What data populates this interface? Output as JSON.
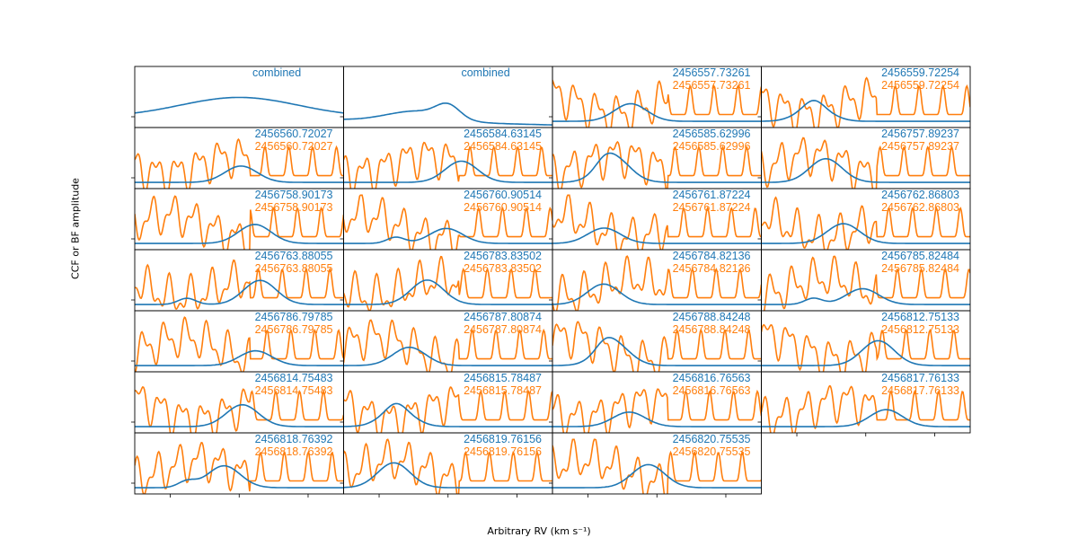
{
  "chart_data": {
    "type": "line",
    "xlabel": "Arbitrary RV (km s⁻¹)",
    "ylabel": "CCF or BF amplitude",
    "colors": {
      "blue": "#1f77b4",
      "orange": "#ff7f0e"
    },
    "grid": false,
    "layout": {
      "rows": 7,
      "cols": 4
    },
    "panels": [
      {
        "labels": [
          "combined"
        ],
        "series": [
          "blue"
        ]
      },
      {
        "labels": [
          "combined"
        ],
        "series": [
          "blue"
        ]
      },
      {
        "labels": [
          "2456557.73261",
          "2456557.73261"
        ],
        "series": [
          "blue",
          "orange"
        ]
      },
      {
        "labels": [
          "2456559.72254",
          "2456559.72254"
        ],
        "series": [
          "blue",
          "orange"
        ]
      },
      {
        "labels": [
          "2456560.72027",
          "2456560.72027"
        ],
        "series": [
          "blue",
          "orange"
        ]
      },
      {
        "labels": [
          "2456584.63145",
          "2456584.63145"
        ],
        "series": [
          "blue",
          "orange"
        ]
      },
      {
        "labels": [
          "2456585.62996",
          "2456585.62996"
        ],
        "series": [
          "blue",
          "orange"
        ]
      },
      {
        "labels": [
          "2456757.89237",
          "2456757.89237"
        ],
        "series": [
          "blue",
          "orange"
        ]
      },
      {
        "labels": [
          "2456758.90173",
          "2456758.90173"
        ],
        "series": [
          "blue",
          "orange"
        ]
      },
      {
        "labels": [
          "2456760.90514",
          "2456760.90514"
        ],
        "series": [
          "blue",
          "orange"
        ]
      },
      {
        "labels": [
          "2456761.87224",
          "2456761.87224"
        ],
        "series": [
          "blue",
          "orange"
        ]
      },
      {
        "labels": [
          "2456762.86803",
          "2456762.86803"
        ],
        "series": [
          "blue",
          "orange"
        ]
      },
      {
        "labels": [
          "2456763.88055",
          "2456763.88055"
        ],
        "series": [
          "blue",
          "orange"
        ]
      },
      {
        "labels": [
          "2456783.83502",
          "2456783.83502"
        ],
        "series": [
          "blue",
          "orange"
        ]
      },
      {
        "labels": [
          "2456784.82136",
          "2456784.82136"
        ],
        "series": [
          "blue",
          "orange"
        ]
      },
      {
        "labels": [
          "2456785.82484",
          "2456785.82484"
        ],
        "series": [
          "blue",
          "orange"
        ]
      },
      {
        "labels": [
          "2456786.79785",
          "2456786.79785"
        ],
        "series": [
          "blue",
          "orange"
        ]
      },
      {
        "labels": [
          "2456787.80874",
          "2456787.80874"
        ],
        "series": [
          "blue",
          "orange"
        ]
      },
      {
        "labels": [
          "2456788.84248",
          "2456788.84248"
        ],
        "series": [
          "blue",
          "orange"
        ]
      },
      {
        "labels": [
          "2456812.75133",
          "2456812.75133"
        ],
        "series": [
          "blue",
          "orange"
        ]
      },
      {
        "labels": [
          "2456814.75483",
          "2456814.75483"
        ],
        "series": [
          "blue",
          "orange"
        ]
      },
      {
        "labels": [
          "2456815.78487",
          "2456815.78487"
        ],
        "series": [
          "blue",
          "orange"
        ]
      },
      {
        "labels": [
          "2456816.76563",
          "2456816.76563"
        ],
        "series": [
          "blue",
          "orange"
        ]
      },
      {
        "labels": [
          "2456817.76133",
          "2456817.76133"
        ],
        "series": [
          "blue",
          "orange"
        ]
      },
      {
        "labels": [
          "2456818.76392",
          "2456818.76392"
        ],
        "series": [
          "blue",
          "orange"
        ]
      },
      {
        "labels": [
          "2456819.76156",
          "2456819.76156"
        ],
        "series": [
          "blue",
          "orange"
        ]
      },
      {
        "labels": [
          "2456820.75535",
          "2456820.75535"
        ],
        "series": [
          "blue",
          "orange"
        ]
      }
    ]
  }
}
